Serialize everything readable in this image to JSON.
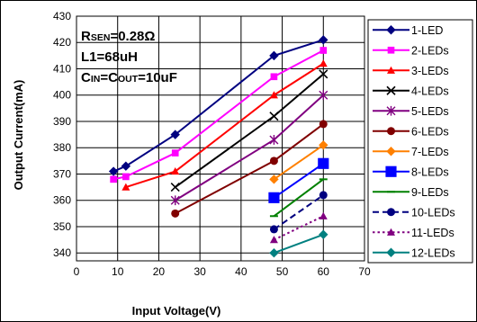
{
  "chart_data": {
    "type": "line",
    "xlabel": "Input Voltage(V)",
    "ylabel": "Output Current(mA)",
    "xlim": [
      0,
      70
    ],
    "ylim": [
      337,
      430
    ],
    "xticks": [
      0,
      10,
      20,
      30,
      40,
      50,
      60,
      70
    ],
    "yticks": [
      340,
      350,
      360,
      370,
      380,
      390,
      400,
      410,
      420,
      430
    ],
    "grid": true,
    "legend_position": "right",
    "annotations": [
      {
        "main": "R",
        "sub": "SEN",
        "rest": "=0.28Ω"
      },
      {
        "main": "L1=68uH",
        "sub": "",
        "rest": ""
      },
      {
        "main": "C",
        "sub": "IN",
        "rest": "=C",
        "sub2": "OUT",
        "rest2": "=10uF"
      }
    ],
    "series": [
      {
        "name": "1-LED",
        "color": "#000080",
        "marker": "diamond",
        "dash": "solid",
        "x": [
          9,
          12,
          24,
          48,
          60
        ],
        "y": [
          371,
          373,
          385,
          415,
          421
        ]
      },
      {
        "name": "2-LEDs",
        "color": "#ff00ff",
        "marker": "square",
        "dash": "solid",
        "x": [
          9,
          12,
          24,
          48,
          60
        ],
        "y": [
          368,
          369,
          378,
          407,
          417
        ]
      },
      {
        "name": "3-LEDs",
        "color": "#ff0000",
        "marker": "triangle",
        "dash": "solid",
        "x": [
          12,
          24,
          48,
          60
        ],
        "y": [
          365,
          371,
          400,
          412
        ]
      },
      {
        "name": "4-LEDs",
        "color": "#000000",
        "marker": "x",
        "dash": "solid",
        "x": [
          24,
          48,
          60
        ],
        "y": [
          365,
          392,
          408
        ]
      },
      {
        "name": "5-LEDs",
        "color": "#800080",
        "marker": "star",
        "dash": "solid",
        "x": [
          24,
          48,
          60
        ],
        "y": [
          360,
          383,
          400
        ]
      },
      {
        "name": "6-LEDs",
        "color": "#800000",
        "marker": "circle",
        "dash": "solid",
        "x": [
          24,
          48,
          60
        ],
        "y": [
          355,
          375,
          389
        ]
      },
      {
        "name": "7-LEDs",
        "color": "#ff8000",
        "marker": "diamond",
        "dash": "solid",
        "x": [
          48,
          60
        ],
        "y": [
          368,
          381
        ]
      },
      {
        "name": "8-LEDs",
        "color": "#0000ff",
        "marker": "bigsquare",
        "dash": "solid",
        "x": [
          48,
          60
        ],
        "y": [
          361,
          374
        ]
      },
      {
        "name": "9-LEDs",
        "color": "#008000",
        "marker": "dash",
        "dash": "solid",
        "x": [
          48,
          60
        ],
        "y": [
          354,
          368
        ]
      },
      {
        "name": "10-LEDs",
        "color": "#000080",
        "marker": "circle",
        "dash": "dashed",
        "x": [
          48,
          60
        ],
        "y": [
          349,
          362
        ]
      },
      {
        "name": "11-LEDs",
        "color": "#800080",
        "marker": "triangle",
        "dash": "dotted",
        "x": [
          48,
          60
        ],
        "y": [
          345,
          354
        ]
      },
      {
        "name": "12-LEDs",
        "color": "#008080",
        "marker": "diamond",
        "dash": "solid",
        "x": [
          48,
          60
        ],
        "y": [
          340,
          347
        ]
      }
    ]
  }
}
